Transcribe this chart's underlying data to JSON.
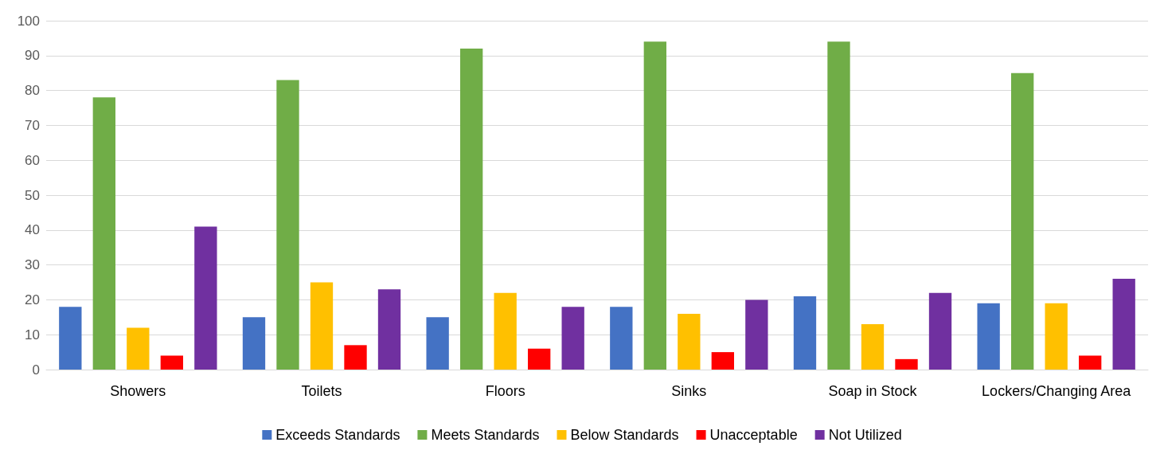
{
  "chart_data": {
    "type": "bar",
    "categories": [
      "Showers",
      "Toilets",
      "Floors",
      "Sinks",
      "Soap in Stock",
      "Lockers/Changing Area"
    ],
    "series": [
      {
        "name": "Exceeds Standards",
        "color": "#4472c4",
        "values": [
          18,
          15,
          15,
          18,
          21,
          19
        ]
      },
      {
        "name": "Meets Standards",
        "color": "#70ad47",
        "values": [
          78,
          83,
          92,
          94,
          94,
          85
        ]
      },
      {
        "name": "Below Standards",
        "color": "#ffc000",
        "values": [
          12,
          25,
          22,
          16,
          13,
          19
        ]
      },
      {
        "name": "Unacceptable",
        "color": "#ff0000",
        "values": [
          4,
          7,
          6,
          5,
          3,
          4
        ]
      },
      {
        "name": "Not Utilized",
        "color": "#7030a0",
        "values": [
          41,
          23,
          18,
          20,
          22,
          26
        ]
      }
    ],
    "ylim": [
      0,
      100
    ],
    "yticks": [
      0,
      10,
      20,
      30,
      40,
      50,
      60,
      70,
      80,
      90,
      100
    ],
    "grid": "y",
    "legend": "bottom"
  }
}
